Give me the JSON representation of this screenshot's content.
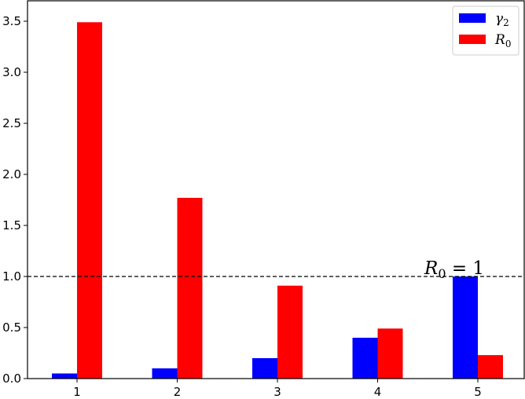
{
  "chart_data": {
    "type": "bar",
    "categories": [
      "1",
      "2",
      "3",
      "4",
      "5"
    ],
    "series": [
      {
        "name": "γ",
        "name_subscript": "2",
        "color": "#0000ff",
        "values": [
          0.05,
          0.1,
          0.2,
          0.4,
          1.0
        ]
      },
      {
        "name": "R",
        "name_subscript": "0",
        "color": "#ff0000",
        "values": [
          3.49,
          1.77,
          0.91,
          0.49,
          0.23
        ]
      }
    ],
    "ylim": [
      0,
      3.7
    ],
    "yticks": [
      "0.0",
      "0.5",
      "1.0",
      "1.5",
      "2.0",
      "2.5",
      "3.0",
      "3.5"
    ],
    "reference_line": {
      "y": 1.0,
      "style": "dashed",
      "label_var": "R",
      "label_sub": "0",
      "label_rest": " = 1"
    },
    "legend_position": "top-right",
    "grid": false
  }
}
